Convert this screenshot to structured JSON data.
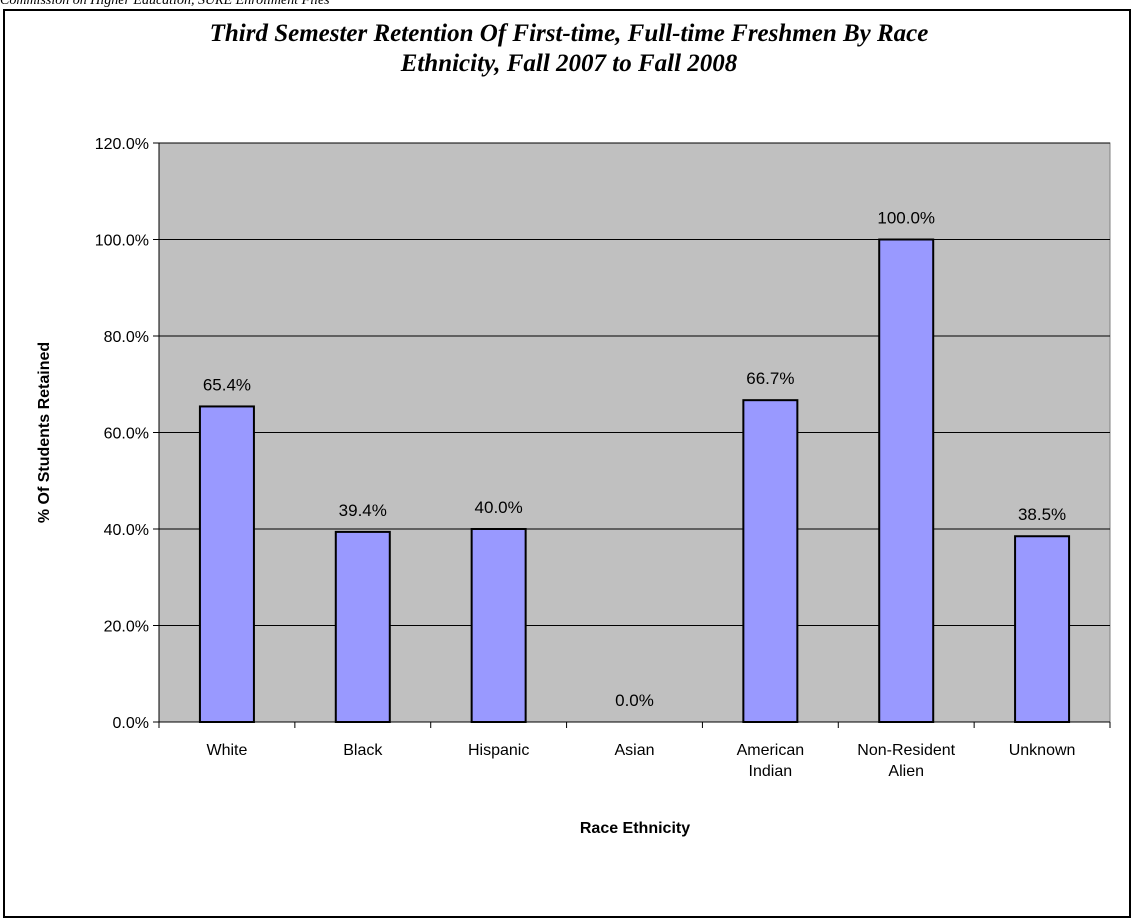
{
  "source_note": "Commission on Higher Education, SURE Enrollment Files",
  "chart_data": {
    "type": "bar",
    "title_lines": [
      "Third Semester Retention Of First-time, Full-time Freshmen By Race",
      "Ethnicity, Fall 2007 to Fall 2008"
    ],
    "xlabel": "Race Ethnicity",
    "ylabel": "% Of Students Retained",
    "categories": [
      [
        "White"
      ],
      [
        "Black"
      ],
      [
        "Hispanic"
      ],
      [
        "Asian"
      ],
      [
        "American",
        "Indian"
      ],
      [
        "Non-Resident",
        "Alien"
      ],
      [
        "Unknown"
      ]
    ],
    "values": [
      65.4,
      39.4,
      40.0,
      0.0,
      66.7,
      100.0,
      38.5
    ],
    "value_labels": [
      "65.4%",
      "39.4%",
      "40.0%",
      "0.0%",
      "66.7%",
      "100.0%",
      "38.5%"
    ],
    "ylim": [
      0,
      120
    ],
    "yticks": [
      0,
      20,
      40,
      60,
      80,
      100,
      120
    ],
    "ytick_labels": [
      "0.0%",
      "20.0%",
      "40.0%",
      "60.0%",
      "80.0%",
      "100.0%",
      "120.0%"
    ],
    "grid": true,
    "legend": "none",
    "colors": {
      "bar_fill": "#9999ff",
      "bar_stroke": "#000000",
      "plot_background": "#c0c0c0",
      "gridline": "#000000"
    }
  }
}
